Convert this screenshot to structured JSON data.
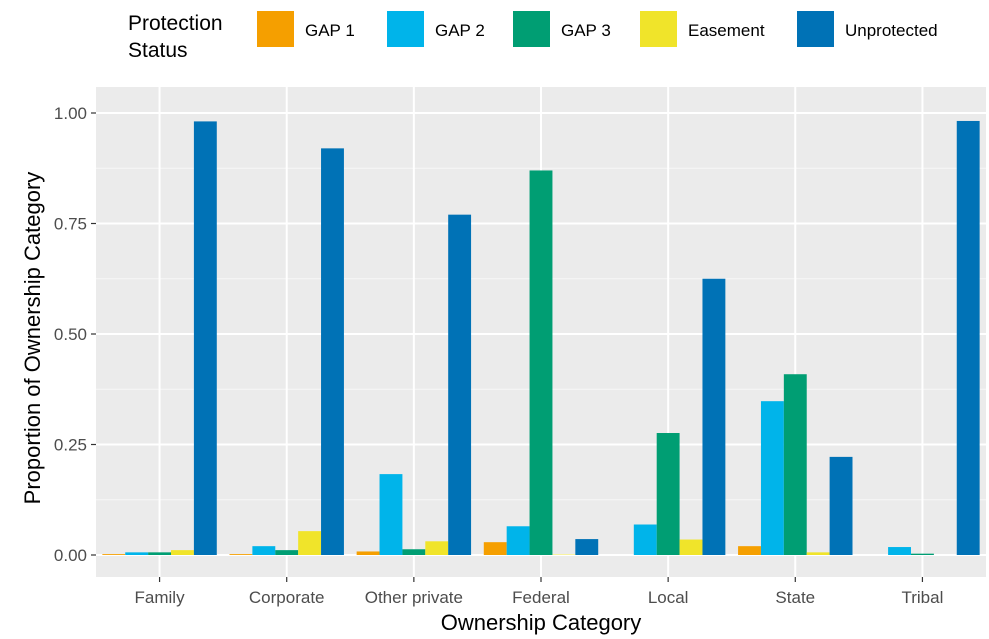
{
  "chart_data": {
    "type": "bar",
    "title": "",
    "xlabel": "Ownership Category",
    "ylabel": "Proportion of Ownership Category",
    "ylim": [
      0,
      1.0
    ],
    "yticks": [
      "0.00",
      "0.25",
      "0.50",
      "0.75",
      "1.00"
    ],
    "categories": [
      "Family",
      "Corporate",
      "Other private",
      "Federal",
      "Local",
      "State",
      "Tribal"
    ],
    "legend": {
      "title_lines": [
        "Protection",
        "Status"
      ],
      "placement": "top"
    },
    "grid": true,
    "series": [
      {
        "name": "GAP 1",
        "color": "#F59F00",
        "values": [
          0.002,
          0.002,
          0.008,
          0.029,
          0.0,
          0.02,
          0.0
        ]
      },
      {
        "name": "GAP 2",
        "color": "#00B4EA",
        "values": [
          0.006,
          0.02,
          0.183,
          0.065,
          0.069,
          0.348,
          0.018
        ]
      },
      {
        "name": "GAP 3",
        "color": "#009E73",
        "values": [
          0.006,
          0.011,
          0.013,
          0.87,
          0.276,
          0.409,
          0.003
        ]
      },
      {
        "name": "Easement",
        "color": "#F0E42A",
        "values": [
          0.011,
          0.054,
          0.031,
          0.001,
          0.035,
          0.006,
          0.0
        ]
      },
      {
        "name": "Unprotected",
        "color": "#0072B6",
        "values": [
          0.981,
          0.92,
          0.77,
          0.036,
          0.625,
          0.222,
          0.982
        ]
      }
    ]
  }
}
